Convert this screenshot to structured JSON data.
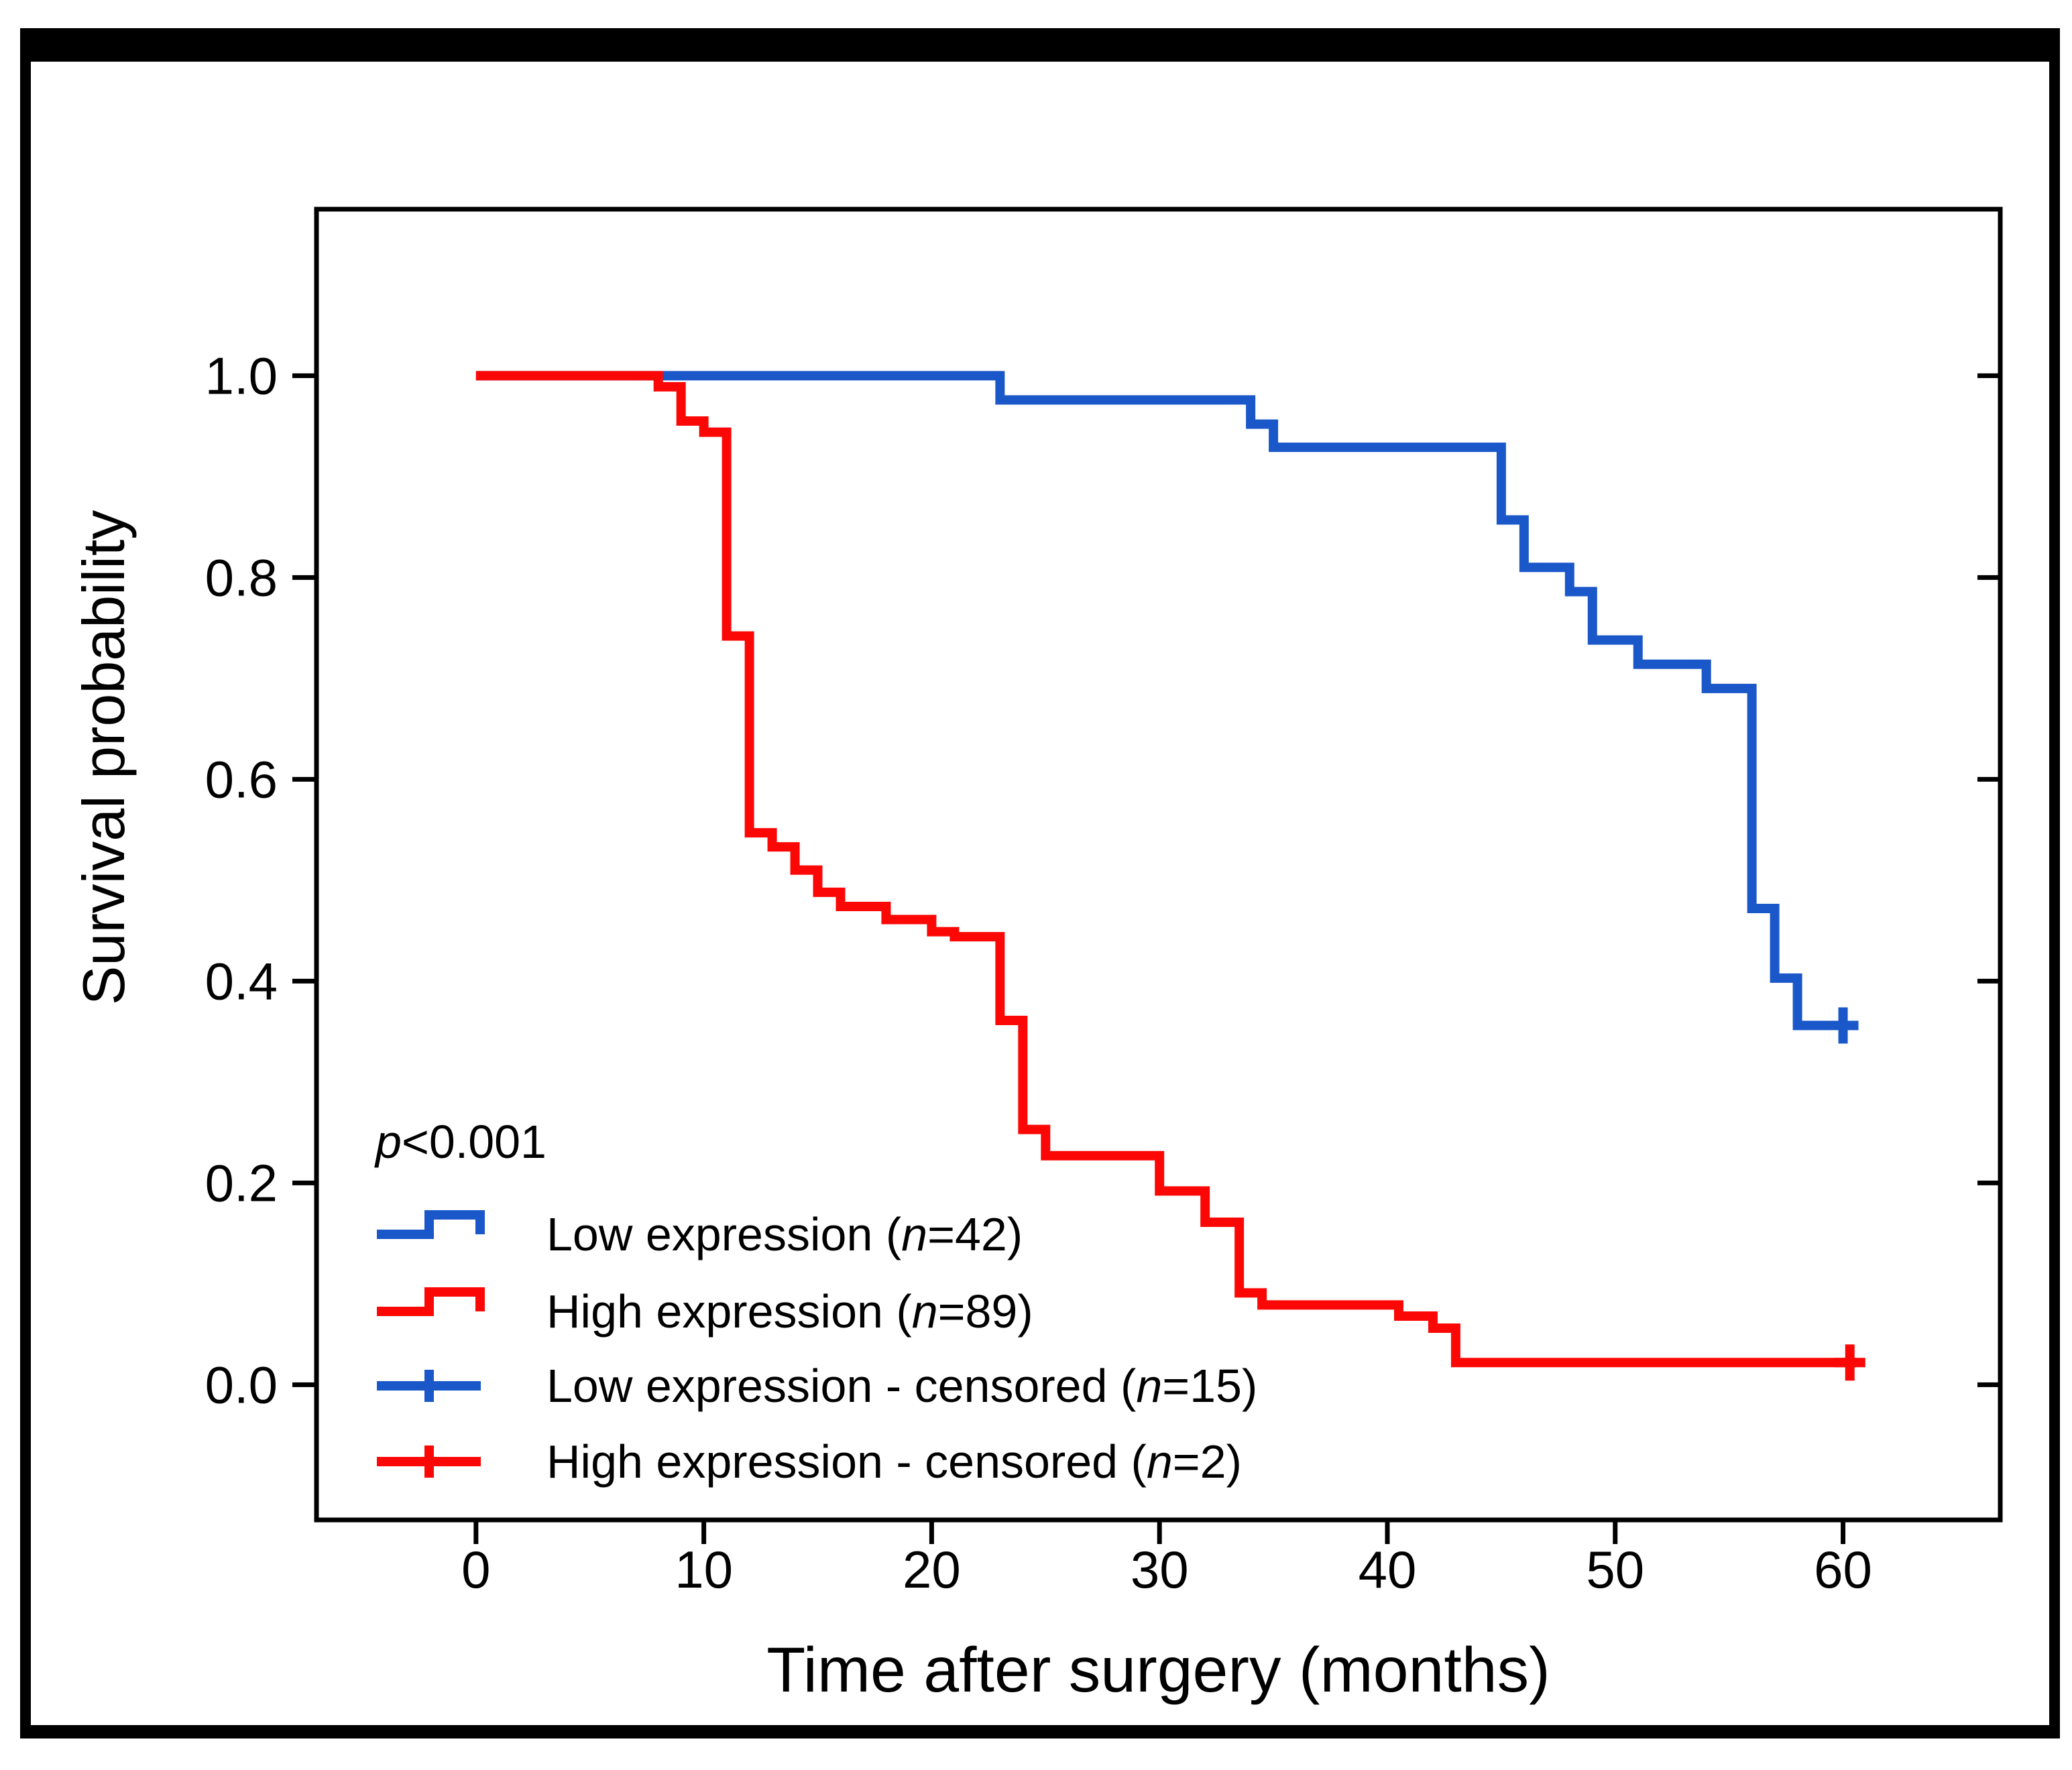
{
  "figure": {
    "background": "#ffffff",
    "border_color": "#000000",
    "frame_color": "#000000"
  },
  "chart_data": {
    "type": "line",
    "subtype": "kaplan-meier-step",
    "title": "",
    "xlabel": "Time after surgery (months)",
    "ylabel": "Survival probability",
    "x_tick_labels": [
      "0",
      "10",
      "20",
      "30",
      "40",
      "50",
      "60"
    ],
    "x_tick_values": [
      0,
      10,
      20,
      30,
      40,
      50,
      60
    ],
    "y_tick_labels": [
      "0.0",
      "0.2",
      "0.4",
      "0.6",
      "0.8",
      "1.0"
    ],
    "y_tick_values": [
      0,
      0.2,
      0.4,
      0.6,
      0.8,
      1.0
    ],
    "xlim": [
      -7,
      66.9
    ],
    "ylim": [
      -0.134,
      1.165
    ],
    "grid": false,
    "annotation": {
      "p_symbol": "p",
      "p_text": "<0.001"
    },
    "series": [
      {
        "name": "Low expression",
        "n": 42,
        "color": "#1a57c9",
        "steps": [
          [
            0,
            1.0
          ],
          [
            23,
            0.976
          ],
          [
            34,
            0.952
          ],
          [
            35,
            0.929
          ],
          [
            45,
            0.857
          ],
          [
            46,
            0.81
          ],
          [
            48,
            0.786
          ],
          [
            49,
            0.738
          ],
          [
            51,
            0.714
          ],
          [
            54,
            0.69
          ],
          [
            56,
            0.472
          ],
          [
            57,
            0.403
          ],
          [
            58,
            0.356
          ]
        ],
        "end_time": 60.5,
        "censored": [
          [
            60.0,
            0.356
          ]
        ]
      },
      {
        "name": "High expression",
        "n": 89,
        "color": "#fb0806",
        "steps": [
          [
            0,
            1.0
          ],
          [
            8,
            0.989
          ],
          [
            9,
            0.955
          ],
          [
            10,
            0.944
          ],
          [
            11,
            0.742
          ],
          [
            12,
            0.547
          ],
          [
            13,
            0.533
          ],
          [
            14,
            0.51
          ],
          [
            15,
            0.488
          ],
          [
            16,
            0.474
          ],
          [
            18,
            0.461
          ],
          [
            20,
            0.449
          ],
          [
            21,
            0.444
          ],
          [
            23,
            0.361
          ],
          [
            24,
            0.253
          ],
          [
            25,
            0.227
          ],
          [
            30,
            0.192
          ],
          [
            32,
            0.161
          ],
          [
            33.5,
            0.091
          ],
          [
            34.5,
            0.079
          ],
          [
            40.5,
            0.068
          ],
          [
            42,
            0.056
          ],
          [
            43,
            0.022
          ]
        ],
        "end_time": 60.6,
        "censored": [
          [
            60.3,
            0.022
          ]
        ]
      }
    ],
    "legend": {
      "position": "lower-left",
      "rows": [
        {
          "series": 0,
          "glyph": "step",
          "prefix": "Low expression (",
          "n_symbol": "n",
          "suffix": "=42)"
        },
        {
          "series": 1,
          "glyph": "step",
          "prefix": "High expression (",
          "n_symbol": "n",
          "suffix": "=89)"
        },
        {
          "series": 0,
          "glyph": "censor",
          "prefix": "Low expression - censored (",
          "n_symbol": "n",
          "suffix": "=15)"
        },
        {
          "series": 1,
          "glyph": "censor",
          "prefix": "High expression - censored (",
          "n_symbol": "n",
          "suffix": "=2)"
        }
      ]
    }
  }
}
